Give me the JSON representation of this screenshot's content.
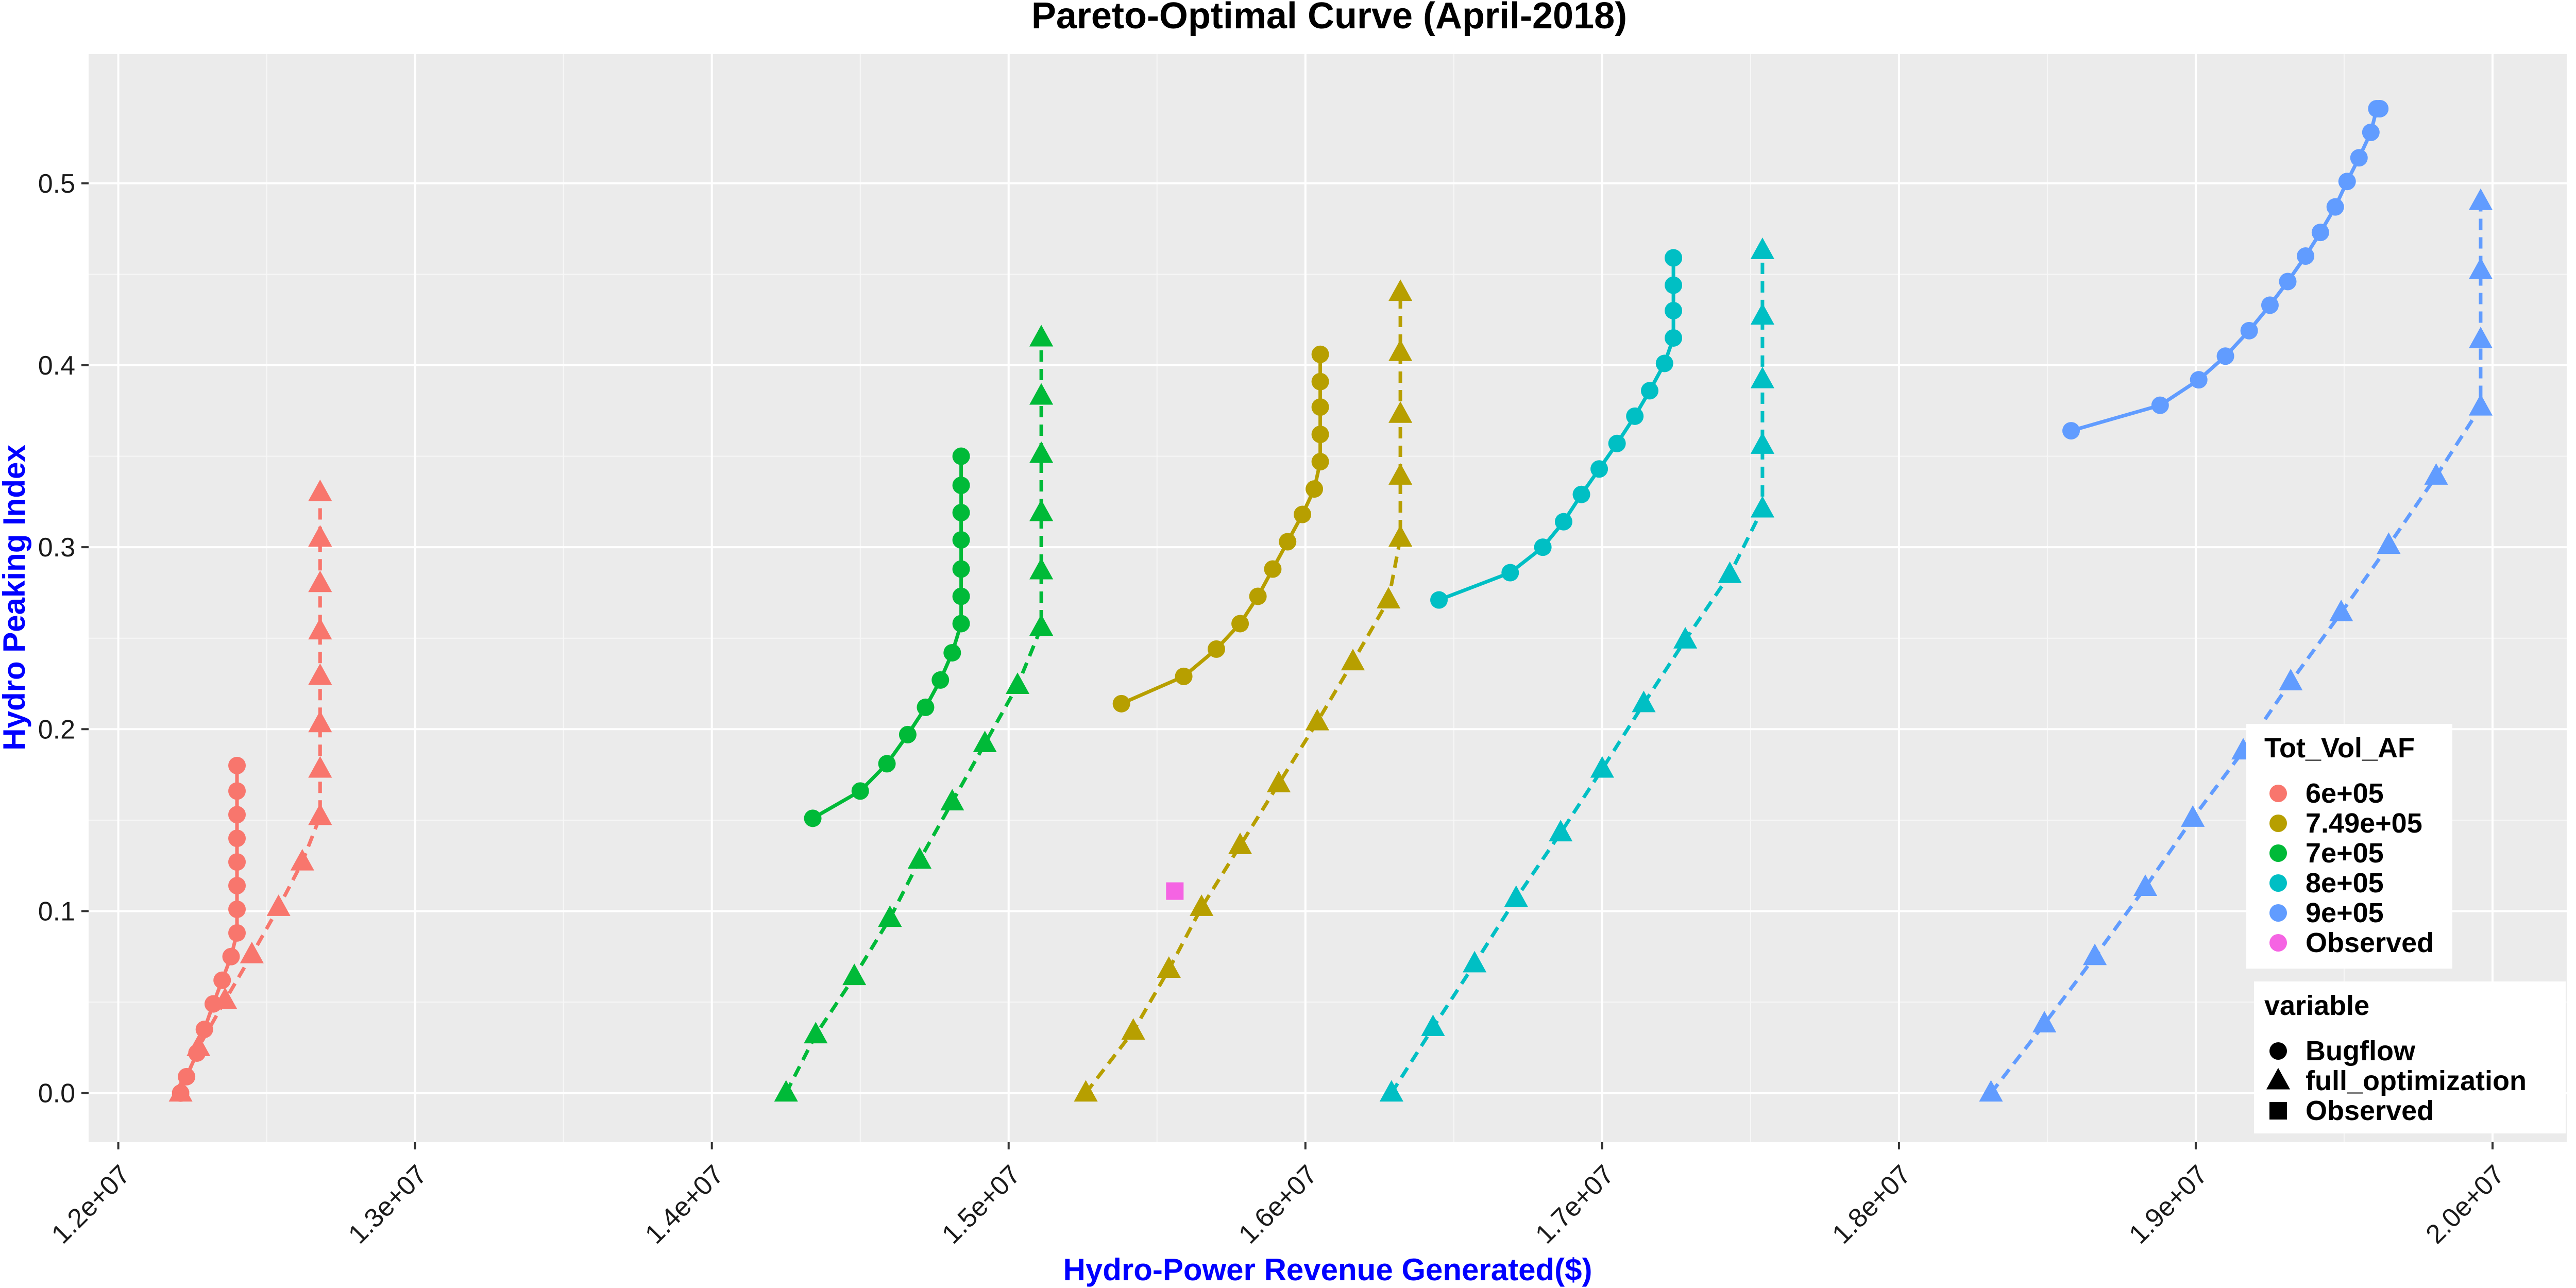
{
  "chart_data": {
    "type": "line",
    "title": "Pareto-Optimal Curve (April-2018)",
    "xlabel": "Hydro-Power Revenue Generated($)",
    "ylabel": "Hydro Peaking Index",
    "xlim": [
      11900000,
      20250000
    ],
    "ylim": [
      -0.027,
      0.571
    ],
    "x_ticks": [
      {
        "value": 12000000,
        "label": "1.2e+07"
      },
      {
        "value": 13000000,
        "label": "1.3e+07"
      },
      {
        "value": 14000000,
        "label": "1.4e+07"
      },
      {
        "value": 15000000,
        "label": "1.5e+07"
      },
      {
        "value": 16000000,
        "label": "1.6e+07"
      },
      {
        "value": 17000000,
        "label": "1.7e+07"
      },
      {
        "value": 18000000,
        "label": "1.8e+07"
      },
      {
        "value": 19000000,
        "label": "1.9e+07"
      },
      {
        "value": 20000000,
        "label": "2.0e+07"
      }
    ],
    "y_ticks": [
      {
        "value": 0.0,
        "label": "0.0"
      },
      {
        "value": 0.1,
        "label": "0.1"
      },
      {
        "value": 0.2,
        "label": "0.2"
      },
      {
        "value": 0.3,
        "label": "0.3"
      },
      {
        "value": 0.4,
        "label": "0.4"
      },
      {
        "value": 0.5,
        "label": "0.5"
      }
    ],
    "grid": true,
    "legend_position": "right",
    "colors": {
      "6e+05": "#F8766D",
      "7.49e+05": "#B79F00",
      "7e+05": "#00BA38",
      "8e+05": "#00BFC4",
      "9e+05": "#619CFF",
      "Observed": "#F564E3"
    },
    "series": [
      {
        "group": "6e+05",
        "variable": "Bugflow",
        "x": [
          12210000,
          12230000,
          12265000,
          12290000,
          12320000,
          12350000,
          12380000,
          12400000,
          12400000,
          12400000,
          12400000,
          12400000,
          12400000
        ],
        "y": [
          0.0,
          0.009,
          0.022,
          0.035,
          0.049,
          0.062,
          0.075,
          0.088,
          0.101,
          0.114,
          0.127,
          0.14,
          0.153
        ]
      },
      {
        "group": "6e+05",
        "variable": "Bugflow_extra",
        "x": [
          12400000,
          12400000
        ],
        "y": [
          0.166,
          0.18
        ]
      },
      {
        "group": "6e+05",
        "variable": "full_optimization",
        "x": [
          12210000,
          12270000,
          12360000,
          12450000,
          12540000,
          12620000,
          12680000,
          12680000,
          12680000,
          12680000,
          12680000,
          12680000,
          12680000
        ],
        "y": [
          0.0,
          0.025,
          0.051,
          0.076,
          0.102,
          0.127,
          0.152,
          0.178,
          0.203,
          0.229,
          0.254,
          0.28,
          0.305
        ]
      },
      {
        "group": "6e+05",
        "variable": "full_optimization_extra",
        "x": [
          12680000
        ],
        "y": [
          0.33
        ]
      },
      {
        "group": "7e+05",
        "variable": "Bugflow",
        "x": [
          14340000,
          14500000,
          14590000,
          14660000,
          14720000,
          14770000,
          14810000,
          14840000,
          14840000,
          14840000,
          14840000,
          14840000,
          14840000,
          14840000
        ],
        "y": [
          0.151,
          0.166,
          0.181,
          0.197,
          0.212,
          0.227,
          0.242,
          0.258,
          0.273,
          0.288,
          0.304,
          0.319,
          0.334,
          0.35
        ]
      },
      {
        "group": "7e+05",
        "variable": "full_optimization",
        "x": [
          14250000,
          14350000,
          14480000,
          14600000,
          14700000,
          14810000,
          14920000,
          15030000,
          15110000,
          15110000,
          15110000,
          15110000,
          15110000,
          15110000,
          15110000
        ],
        "y": [
          0.0,
          0.032,
          0.064,
          0.096,
          0.128,
          0.16,
          0.192,
          0.224,
          0.256,
          0.287,
          0.319,
          0.351,
          0.383,
          0.415,
          0.415
        ]
      },
      {
        "group": "7.49e+05",
        "variable": "Bugflow",
        "x": [
          15380000,
          15590000,
          15700000,
          15780000,
          15840000,
          15890000,
          15940000,
          15990000,
          16030000,
          16050000,
          16050000,
          16050000,
          16050000,
          16050000
        ],
        "y": [
          0.214,
          0.229,
          0.244,
          0.258,
          0.273,
          0.288,
          0.303,
          0.318,
          0.332,
          0.347,
          0.362,
          0.377,
          0.391,
          0.406
        ]
      },
      {
        "group": "7.49e+05",
        "variable": "full_optimization",
        "x": [
          15260000,
          15420000,
          15540000,
          15650000,
          15780000,
          15910000,
          16040000,
          16160000,
          16280000,
          16320000,
          16320000,
          16320000,
          16320000,
          16320000
        ],
        "y": [
          0.0,
          0.034,
          0.068,
          0.102,
          0.136,
          0.17,
          0.204,
          0.237,
          0.271,
          0.305,
          0.339,
          0.373,
          0.407,
          0.44
        ]
      },
      {
        "group": "8e+05",
        "variable": "Bugflow",
        "x": [
          16450000,
          16690000,
          16800000,
          16870000,
          16930000,
          16990000,
          17050000,
          17110000,
          17160000,
          17210000,
          17240000,
          17240000,
          17240000,
          17240000,
          17240000
        ],
        "y": [
          0.271,
          0.286,
          0.3,
          0.314,
          0.329,
          0.343,
          0.357,
          0.372,
          0.386,
          0.401,
          0.415,
          0.43,
          0.444,
          0.459,
          0.459
        ]
      },
      {
        "group": "8e+05",
        "variable": "full_optimization",
        "x": [
          16290000,
          16430000,
          16570000,
          16710000,
          16860000,
          17000000,
          17140000,
          17280000,
          17430000,
          17540000,
          17540000,
          17540000,
          17540000,
          17540000,
          17540000
        ],
        "y": [
          0.0,
          0.036,
          0.071,
          0.107,
          0.143,
          0.178,
          0.214,
          0.249,
          0.285,
          0.321,
          0.356,
          0.392,
          0.427,
          0.463,
          0.463
        ]
      },
      {
        "group": "9e+05",
        "variable": "Bugflow",
        "x": [
          18580000,
          18880000,
          19010000,
          19100000,
          19180000,
          19250000,
          19310000,
          19370000,
          19420000,
          19470000,
          19510000,
          19550000,
          19590000,
          19610000,
          19620000,
          19620000
        ],
        "y": [
          0.364,
          0.378,
          0.392,
          0.405,
          0.419,
          0.433,
          0.446,
          0.46,
          0.473,
          0.487,
          0.501,
          0.514,
          0.528,
          0.541,
          0.541,
          0.541
        ]
      },
      {
        "group": "9e+05",
        "variable": "full_optimization",
        "x": [
          18310000,
          18490000,
          18660000,
          18830000,
          18990000,
          19160000,
          19320000,
          19490000,
          19650000,
          19810000,
          19960000,
          19960000,
          19960000,
          19960000
        ],
        "y": [
          0.0,
          0.038,
          0.075,
          0.113,
          0.151,
          0.188,
          0.226,
          0.264,
          0.301,
          0.339,
          0.377,
          0.414,
          0.452,
          0.49
        ]
      },
      {
        "group": "Observed",
        "variable": "Observed",
        "x": [
          15560000
        ],
        "y": [
          0.111
        ]
      }
    ],
    "legend": {
      "color_title": "Tot_Vol_AF",
      "color_items": [
        "6e+05",
        "7.49e+05",
        "7e+05",
        "8e+05",
        "9e+05",
        "Observed"
      ],
      "shape_title": "variable",
      "shape_items": [
        {
          "label": "Bugflow",
          "shape": "circle"
        },
        {
          "label": "full_optimization",
          "shape": "triangle"
        },
        {
          "label": "Observed",
          "shape": "square"
        }
      ]
    }
  }
}
